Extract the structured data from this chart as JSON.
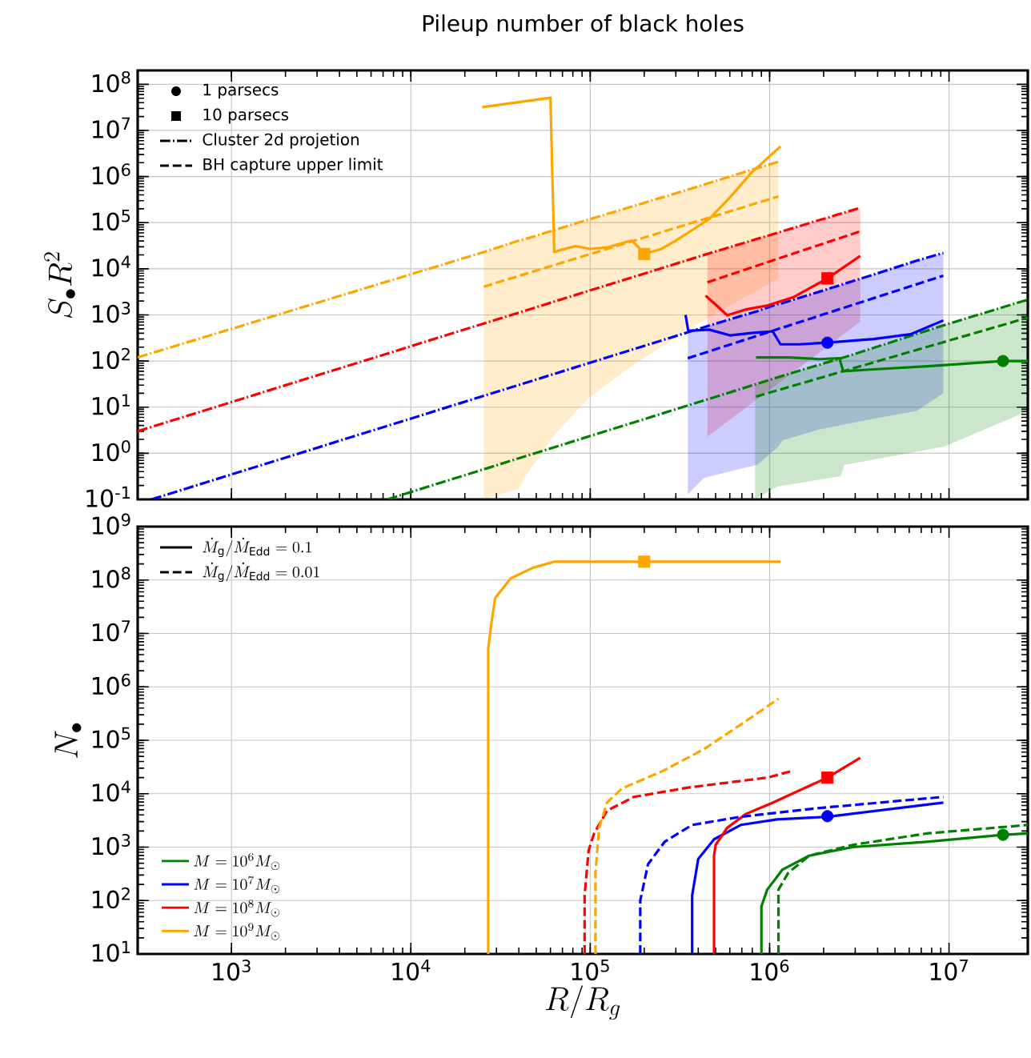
{
  "chart_data": [
    {
      "type": "line",
      "title": "Pileup number of black holes",
      "ylabel": "S_{\\bullet} R^{2}",
      "log": "xy",
      "grid": true,
      "tick_labels": "y",
      "annotations": [
        "1 parsecs",
        "10 parsecs",
        "Cluster 2d projetion",
        "BH capture upper limit"
      ],
      "xlim": [
        300,
        27500000
      ],
      "ylim": [
        0.1,
        200000000
      ],
      "xticks": [
        {
          "value": 1000,
          "label": null
        },
        {
          "value": 10000,
          "label": null
        },
        {
          "value": 100000,
          "label": null
        },
        {
          "value": 1000000,
          "label": null
        },
        {
          "value": 10000000,
          "label": null
        }
      ],
      "yticks": [
        {
          "value": 0.1,
          "label": "10$^{-1}$"
        },
        {
          "value": 1,
          "label": "10$^{0}$"
        },
        {
          "value": 10,
          "label": "10$^{1}$"
        },
        {
          "value": 100,
          "label": "10$^{2}$"
        },
        {
          "value": 1000,
          "label": "10$^{3}$"
        },
        {
          "value": 10000,
          "label": "10$^{4}$"
        },
        {
          "value": 100000,
          "label": "10$^{5}$"
        },
        {
          "value": 1000000,
          "label": "10$^{6}$"
        },
        {
          "value": 10000000,
          "label": "10$^{7}$"
        },
        {
          "value": 100000000,
          "label": "10$^{8}$"
        }
      ],
      "series": [
        {
          "type": "scatter",
          "marker": "circle",
          "x": [
            2100000,
            20000000
          ],
          "values": [
            250,
            100
          ],
          "colors": [
            "#0000ff",
            "#008000"
          ]
        },
        {
          "type": "scatter",
          "marker": "square",
          "x": [
            200000,
            2100000
          ],
          "values": [
            21000,
            6200
          ],
          "colors": [
            "#ffa500",
            "#ff0000"
          ]
        },
        {
          "type": "line",
          "line_style": "dashdot",
          "color": "#ffa500",
          "x": [
            300,
            25500,
            40000,
            45000,
            63000,
            100000,
            175000,
            350000,
            600000,
            1120000
          ],
          "values": [
            120,
            23000,
            41000,
            46000,
            69000,
            120000,
            230000,
            520000,
            1000000,
            2100000
          ],
          "upper": [
            null,
            23000,
            41000,
            46000,
            69000,
            120000,
            230000,
            520000,
            1000000,
            2100000
          ],
          "lower": [
            null,
            0.1,
            0.17,
            0.38,
            2.5,
            17,
            83,
            480,
            1600,
            6200
          ]
        },
        {
          "type": "line",
          "line_style": "dashdot",
          "color": "#ff0000",
          "x": [
            300,
            450000,
            3200000
          ],
          "values": [
            3.0,
            21000,
            210000
          ],
          "upper": [
            null,
            21000,
            210000
          ],
          "lower": [
            null,
            2.3,
            710
          ]
        },
        {
          "type": "line",
          "line_style": "dashdot",
          "color": "#0000ff",
          "x": [
            358,
            350000,
            430000,
            650000,
            850000,
            1100000,
            1180000,
            1900000,
            3800000,
            6600000,
            9300000
          ],
          "values": [
            0.1,
            420,
            540,
            880,
            1200,
            1700,
            1800,
            3200,
            7500,
            15000,
            22000
          ],
          "upper": [
            null,
            420,
            540,
            880,
            1200,
            1700,
            1800,
            3200,
            7500,
            15000,
            22000
          ],
          "lower": [
            null,
            0.13,
            0.29,
            0.44,
            0.56,
            1.3,
            1.9,
            3.3,
            5.6,
            8.3,
            20
          ]
        },
        {
          "type": "line",
          "line_style": "dashdot",
          "color": "#008000",
          "x": [
            7400,
            830000,
            1100000,
            2500000,
            2600000,
            9400000,
            27000000
          ],
          "values": [
            0.1,
            31,
            44,
            115,
            120,
            600,
            2100
          ],
          "upper": [
            null,
            31,
            44,
            115,
            120,
            600,
            2100
          ],
          "lower": [
            null,
            0.1,
            0.19,
            0.32,
            0.56,
            1.4,
            8
          ]
        },
        {
          "type": "line",
          "line_style": "dashed",
          "color": "#ffa500",
          "x": [
            25500,
            1120000
          ],
          "values": [
            4100,
            370000
          ]
        },
        {
          "type": "line",
          "line_style": "dashed",
          "color": "#ff0000",
          "x": [
            450000,
            3200000
          ],
          "values": [
            5100,
            65000
          ]
        },
        {
          "type": "line",
          "line_style": "dashed",
          "color": "#0000ff",
          "x": [
            350000,
            9300000
          ],
          "values": [
            115,
            7100
          ]
        },
        {
          "type": "line",
          "line_style": "dashed",
          "color": "#008000",
          "x": [
            840000,
            27500000
          ],
          "values": [
            17,
            870
          ]
        },
        {
          "type": "line",
          "line_style": "solid",
          "color": "#ffa500",
          "x": [
            25000,
            60000,
            63000,
            67000,
            83000,
            100000,
            124000,
            170000,
            190000,
            200000,
            250000,
            300000,
            370000,
            460000,
            600000,
            790000,
            1150000
          ],
          "values": [
            32000000,
            51000000,
            23000,
            25000,
            31000,
            27000,
            29000,
            41000,
            27000,
            21000,
            27000,
            41000,
            69000,
            120000,
            350000,
            1200000,
            4500000
          ]
        },
        {
          "type": "line",
          "line_style": "solid",
          "color": "#ff0000",
          "x": [
            440000,
            490000,
            580000,
            730000,
            970000,
            1350000,
            2100000,
            3200000
          ],
          "values": [
            2600,
            1800,
            980,
            1300,
            1600,
            2400,
            6200,
            19000
          ]
        },
        {
          "type": "line",
          "line_style": "solid",
          "color": "#0000ff",
          "x": [
            340000,
            352000,
            460000,
            600000,
            810000,
            1040000,
            1150000,
            1460000,
            2100000,
            3800000,
            6100000,
            9300000
          ],
          "values": [
            1000,
            450,
            480,
            360,
            410,
            440,
            230,
            230,
            250,
            300,
            380,
            760
          ]
        },
        {
          "type": "line",
          "line_style": "solid",
          "color": "#008000",
          "x": [
            840000,
            1270000,
            1900000,
            2450000,
            2570000,
            3800000,
            7600000,
            20000000,
            27500000
          ],
          "values": [
            120,
            120,
            110,
            115,
            60,
            66,
            77,
            100,
            100
          ]
        }
      ]
    },
    {
      "type": "line",
      "xlabel": "R/R_{g}",
      "ylabel": "N_{\\bullet}",
      "log": "xy",
      "grid": true,
      "legend": "bottom left",
      "annotations": [
        "\\dot{M}_{\\rm g}/\\dot{M}_{\\rm Edd} = 0.1",
        "\\dot{M}_{\\rm g}/\\dot{M}_{\\rm Edd} = 0.01"
      ],
      "xlim": [
        300,
        27500000
      ],
      "ylim": [
        10,
        1000000000
      ],
      "xticks": [
        {
          "value": 1000,
          "label": "10$^{3}$"
        },
        {
          "value": 10000,
          "label": "10$^{4}$"
        },
        {
          "value": 100000,
          "label": "10$^{5}$"
        },
        {
          "value": 1000000,
          "label": "10$^{6}$"
        },
        {
          "value": 10000000,
          "label": "10$^{7}$"
        }
      ],
      "yticks": [
        {
          "value": 10,
          "label": "10$^{1}$"
        },
        {
          "value": 100,
          "label": "10$^{2}$"
        },
        {
          "value": 1000,
          "label": "10$^{3}$"
        },
        {
          "value": 10000,
          "label": "10$^{4}$"
        },
        {
          "value": 100000,
          "label": "10$^{5}$"
        },
        {
          "value": 1000000,
          "label": "10$^{6}$"
        },
        {
          "value": 10000000,
          "label": "10$^{7}$"
        },
        {
          "value": 100000000,
          "label": "10$^{8}$"
        },
        {
          "value": 1000000000,
          "label": "10$^{9}$"
        }
      ],
      "series": [
        {
          "type": "line",
          "name": "M = 10^{6} M_{\\odot}",
          "line_style": "solid",
          "color": "#008000",
          "x": [
            900000,
            900000,
            970000,
            1180000,
            1660000,
            2900000,
            7500000,
            20000000,
            27500000
          ],
          "values": [
            10,
            78,
            160,
            380,
            690,
            1000,
            1260,
            1700,
            1800
          ]
        },
        {
          "type": "line",
          "name": "M = 10^{7} M_{\\odot}",
          "line_style": "solid",
          "color": "#0000ff",
          "x": [
            370000,
            370000,
            400000,
            490000,
            690000,
            1100000,
            2100000,
            9300000
          ],
          "values": [
            10,
            125,
            600,
            1400,
            2600,
            3300,
            3700,
            6800
          ]
        },
        {
          "type": "line",
          "name": "M = 10^{8} M_{\\odot}",
          "line_style": "solid",
          "color": "#ff0000",
          "x": [
            490000,
            490000,
            500000,
            580000,
            740000,
            1040000,
            2100000,
            3200000
          ],
          "values": [
            10,
            690,
            1100,
            2300,
            4200,
            6800,
            20000,
            47000
          ]
        },
        {
          "type": "line",
          "name": "M = 10^{9} M_{\\odot}",
          "line_style": "solid",
          "color": "#ffa500",
          "x": [
            27000,
            27000,
            28000,
            29500,
            36000,
            48000,
            63000,
            1150000
          ],
          "values": [
            10,
            5200000,
            14000000,
            46000000,
            107000000,
            170000000,
            220000000,
            220000000
          ]
        },
        {
          "type": "line",
          "line_style": "dashed",
          "color": "#008000",
          "x": [
            1120000,
            1120000,
            1270000,
            1660000,
            2900000,
            7500000,
            27500000
          ],
          "values": [
            10,
            160,
            330,
            690,
            1100,
            1800,
            2600
          ]
        },
        {
          "type": "line",
          "line_style": "dashed",
          "color": "#0000ff",
          "x": [
            190000,
            190000,
            210000,
            260000,
            370000,
            690000,
            1900000,
            9300000
          ],
          "values": [
            10,
            100,
            480,
            1260,
            2600,
            3700,
            5400,
            8700
          ]
        },
        {
          "type": "line",
          "line_style": "dashed",
          "color": "#ff0000",
          "x": [
            93000,
            93000,
            98000,
            105000,
            124000,
            175000,
            350000,
            970000,
            1300000
          ],
          "values": [
            10,
            125,
            870,
            1800,
            4800,
            8700,
            13000,
            20000,
            26000
          ]
        },
        {
          "type": "line",
          "line_style": "dashed",
          "color": "#ffa500",
          "x": [
            107000,
            107000,
            112000,
            124000,
            150000,
            250000,
            430000,
            740000,
            1120000
          ],
          "values": [
            10,
            330,
            2300,
            6800,
            12500,
            26000,
            68000,
            230000,
            600000
          ]
        },
        {
          "type": "scatter",
          "marker": "circle",
          "x": [
            20000000,
            2100000
          ],
          "values": [
            1700,
            3800
          ],
          "colors": [
            "#008000",
            "#0000ff"
          ]
        },
        {
          "type": "scatter",
          "marker": "square",
          "x": [
            2100000,
            200000
          ],
          "values": [
            20000,
            220000000
          ],
          "colors": [
            "#ff0000",
            "#ffa500"
          ]
        }
      ]
    }
  ]
}
